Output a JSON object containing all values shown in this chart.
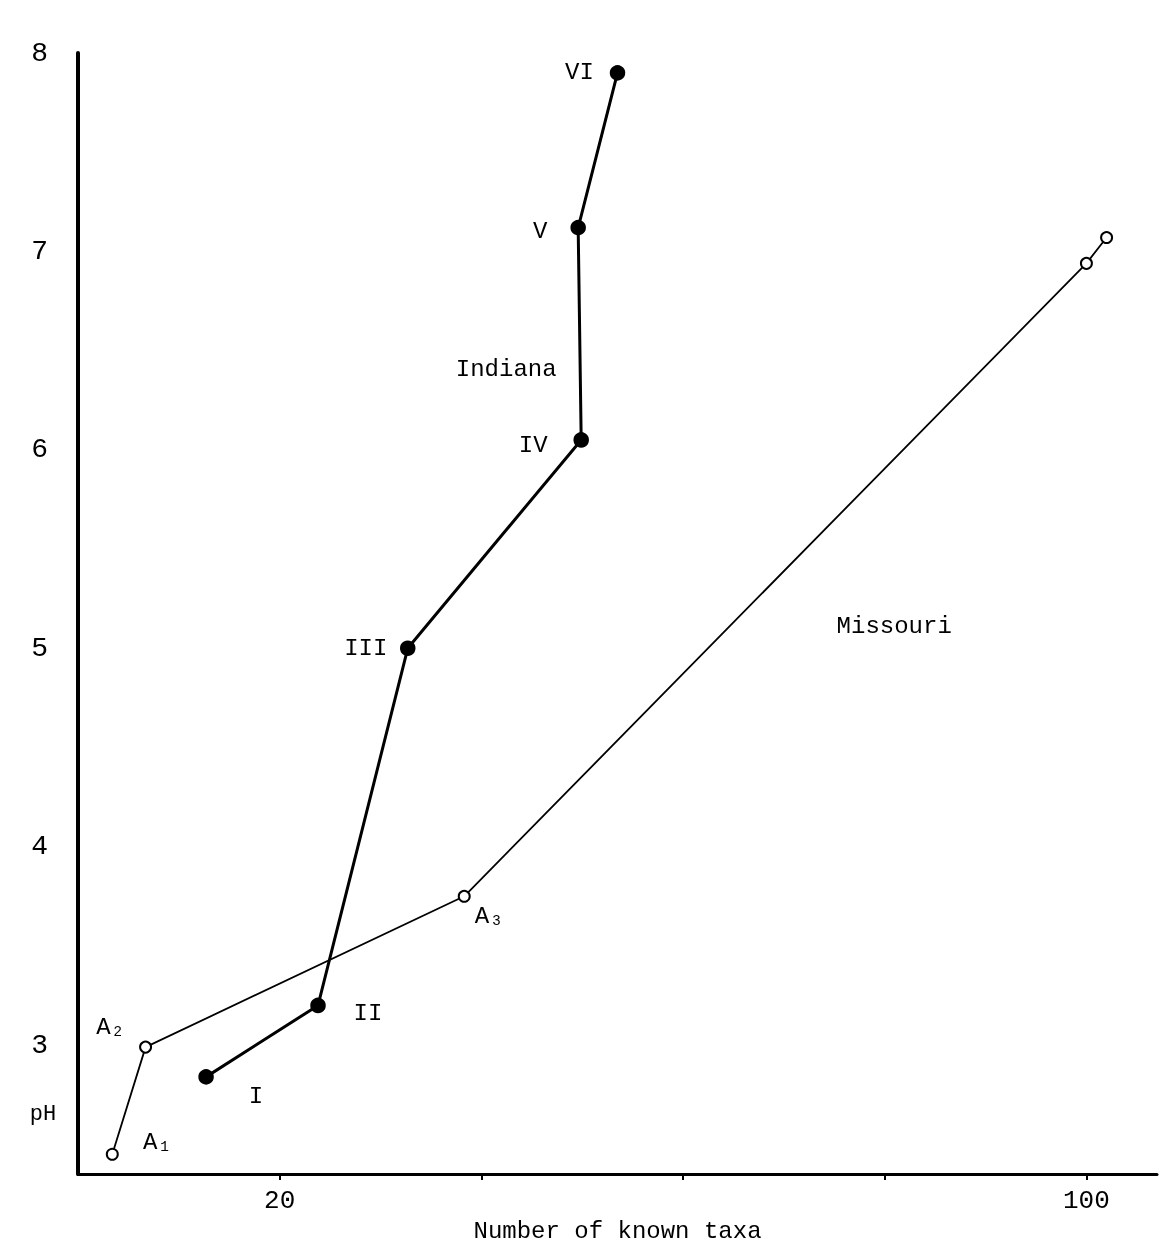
{
  "chart_data": {
    "type": "line",
    "xlabel": "Number of known taxa",
    "ylabel": "pH",
    "xlim": [
      0,
      107
    ],
    "ylim": [
      2.35,
      8
    ],
    "xticks": [
      {
        "value": 20,
        "label": "20"
      },
      {
        "value": 40,
        "label": null
      },
      {
        "value": 60,
        "label": null
      },
      {
        "value": 80,
        "label": null
      },
      {
        "value": 100,
        "label": "100"
      }
    ],
    "yticks": [
      3,
      4,
      5,
      6,
      7,
      8
    ],
    "grid": false,
    "legend": false,
    "marker": "circle",
    "line_style": "solid",
    "series": [
      {
        "name": "Indiana",
        "color": "#000000",
        "x": [
          12.7,
          23.8,
          32.7,
          49.9,
          49.6,
          53.5
        ],
        "values": [
          2.84,
          3.2,
          5.0,
          6.05,
          7.12,
          7.9
        ]
      },
      {
        "name": "Missouri",
        "color": "#000000",
        "x": [
          3.4,
          6.7,
          38.3,
          100,
          102
        ],
        "values": [
          2.45,
          2.99,
          3.75,
          6.94,
          7.07
        ]
      }
    ],
    "annotations": [
      {
        "text": "I",
        "x": 12.7,
        "y": 2.84
      },
      {
        "text": "II",
        "x": 23.8,
        "y": 3.2
      },
      {
        "text": "III",
        "x": 32.7,
        "y": 5.0
      },
      {
        "text": "IV",
        "x": 49.9,
        "y": 6.05
      },
      {
        "text": "V",
        "x": 49.6,
        "y": 7.12
      },
      {
        "text": "VI",
        "x": 53.5,
        "y": 7.9
      },
      {
        "text": "A₁",
        "x": 3.4,
        "y": 2.45
      },
      {
        "text": "A₂",
        "x": 6.7,
        "y": 2.99
      },
      {
        "text": "A₃",
        "x": 38.3,
        "y": 3.75
      }
    ]
  }
}
